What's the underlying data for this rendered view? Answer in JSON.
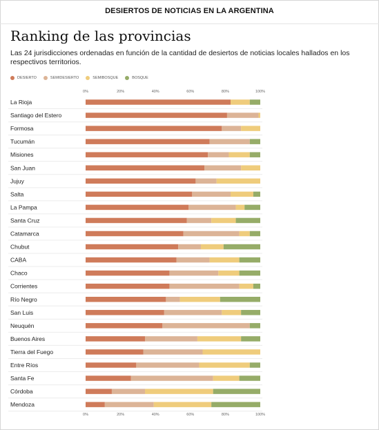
{
  "header": {
    "title": "DESIERTOS DE NOTICIAS EN LA ARGENTINA"
  },
  "chart_title": "Ranking de las provincias",
  "chart_subtitle": "Las 24 jurisdicciones ordenadas en función de la cantidad de desiertos de noticias locales hallados en los respectivos territorios.",
  "colors": {
    "desierto": "#cf7b5a",
    "semidesierto": "#dcb497",
    "semibosque": "#efcc7c",
    "bosque": "#96ac68"
  },
  "chart_data": {
    "type": "bar",
    "orientation": "horizontal",
    "stacked": true,
    "percent": true,
    "xlim": [
      0,
      100
    ],
    "xticks": [
      "0%",
      "20%",
      "40%",
      "60%",
      "80%",
      "100%"
    ],
    "legend_position": "top-left",
    "categories": [
      "La Rioja",
      "Santiago del Estero",
      "Formosa",
      "Tucumán",
      "Misiones",
      "San Juan",
      "Jujuy",
      "Salta",
      "La Pampa",
      "Santa Cruz",
      "Catamarca",
      "Chubut",
      "CABA",
      "Chaco",
      "Corrientes",
      "Río Negro",
      "San Luis",
      "Neuquén",
      "Buenos Aires",
      "Tierra del Fuego",
      "Entre Ríos",
      "Santa Fe",
      "Córdoba",
      "Mendoza"
    ],
    "series": [
      {
        "name": "DESIERTO",
        "key": "desierto",
        "values": [
          83,
          81,
          78,
          71,
          70,
          68,
          63,
          61,
          59,
          58,
          56,
          53,
          52,
          48,
          48,
          46,
          45,
          44,
          34,
          33,
          29,
          26,
          15,
          11
        ]
      },
      {
        "name": "SEMIDESIERTO",
        "key": "semidesierto",
        "values": [
          0,
          18,
          11,
          23,
          12,
          21,
          12,
          22,
          27,
          14,
          32,
          13,
          19,
          28,
          40,
          8,
          33,
          50,
          30,
          34,
          36,
          47,
          19,
          28
        ]
      },
      {
        "name": "SEMIBOSQUE",
        "key": "semibosque",
        "values": [
          11,
          1,
          11,
          0,
          12,
          11,
          25,
          13,
          5,
          14,
          6,
          13,
          17,
          12,
          8,
          23,
          11,
          0,
          25,
          33,
          29,
          15,
          39,
          33
        ]
      },
      {
        "name": "BOSQUE",
        "key": "bosque",
        "values": [
          6,
          0,
          0,
          6,
          6,
          0,
          0,
          4,
          9,
          14,
          6,
          21,
          12,
          12,
          4,
          23,
          11,
          6,
          11,
          0,
          6,
          12,
          27,
          28
        ]
      }
    ]
  }
}
